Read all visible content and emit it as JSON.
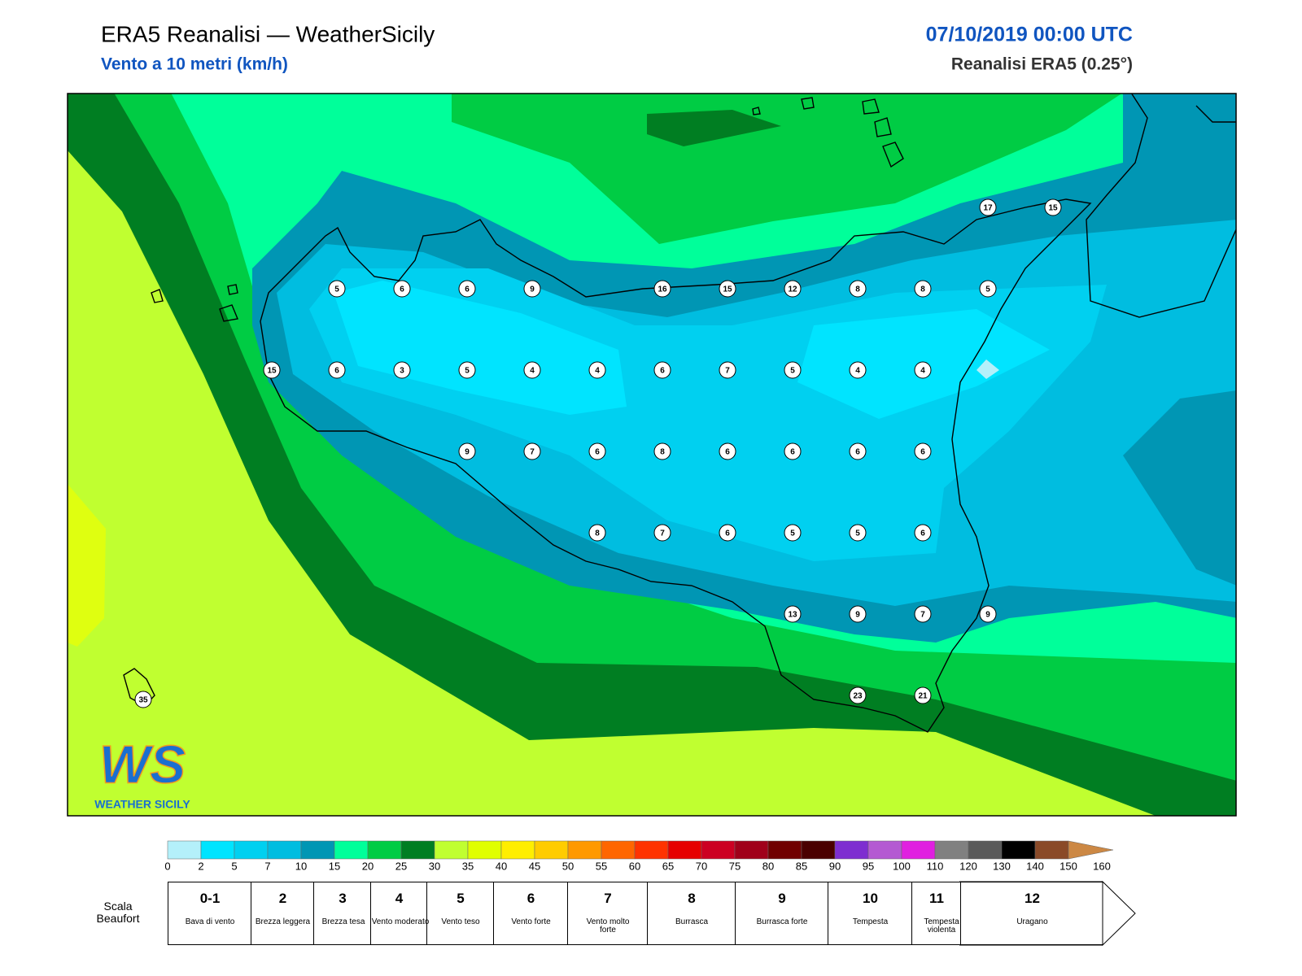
{
  "header": {
    "title": "ERA5 Reanalisi — WeatherSicily",
    "subtitle": "Vento a 10 metri (km/h)",
    "date": "07/10/2019 00:00 UTC",
    "model": "Reanalisi ERA5 (0.25°)"
  },
  "points": [
    17,
    15,
    5,
    6,
    6,
    9,
    16,
    15,
    12,
    8,
    8,
    5,
    15,
    6,
    3,
    5,
    4,
    4,
    6,
    7,
    5,
    4,
    4,
    9,
    7,
    6,
    8,
    6,
    6,
    6,
    6,
    8,
    7,
    6,
    5,
    5,
    6,
    13,
    9,
    7,
    9,
    23,
    21,
    35
  ],
  "logo": {
    "mark": "WS",
    "name": "WEATHER SICILY"
  },
  "colorbar": {
    "ticks": [
      0,
      2,
      5,
      7,
      10,
      15,
      20,
      25,
      30,
      35,
      40,
      45,
      50,
      55,
      60,
      65,
      70,
      75,
      80,
      85,
      90,
      95,
      100,
      110,
      120,
      130,
      140,
      150,
      160
    ],
    "colors": [
      "#b4f0fa",
      "#00e4ff",
      "#00d0f0",
      "#00bde0",
      "#0096b4",
      "#00ff9a",
      "#00cc44",
      "#007e22",
      "#c0ff30",
      "#e0ff00",
      "#ffee00",
      "#ffcc00",
      "#ff9900",
      "#ff6600",
      "#ff3300",
      "#e60000",
      "#cc0022",
      "#a0001a",
      "#700000",
      "#4a0000",
      "#7e2ed0",
      "#b45ad2",
      "#e020e0",
      "#808080",
      "#5a5a5a",
      "#000000",
      "#8a4a28",
      "#cc8844"
    ]
  },
  "beaufort": {
    "label": "Scala Beaufort",
    "levels": [
      {
        "force": "0-1",
        "name": "Bava di vento"
      },
      {
        "force": "2",
        "name": "Brezza leggera"
      },
      {
        "force": "3",
        "name": "Brezza tesa"
      },
      {
        "force": "4",
        "name": "Vento moderato"
      },
      {
        "force": "5",
        "name": "Vento teso"
      },
      {
        "force": "6",
        "name": "Vento forte"
      },
      {
        "force": "7",
        "name": "Vento molto forte"
      },
      {
        "force": "8",
        "name": "Burrasca"
      },
      {
        "force": "9",
        "name": "Burrasca forte"
      },
      {
        "force": "10",
        "name": "Tempesta"
      },
      {
        "force": "11",
        "name": "Tempesta violenta"
      },
      {
        "force": "12",
        "name": "Uragano"
      }
    ]
  }
}
